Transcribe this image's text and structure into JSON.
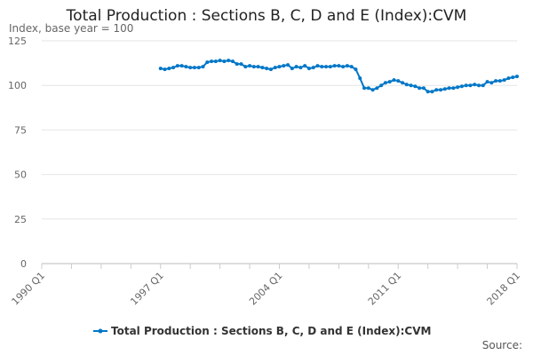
{
  "chart_data": {
    "type": "line",
    "title": "Total Production : Sections B, C, D and E (Index):CVM",
    "ylabel": "Index, base year = 100",
    "ylim": [
      0,
      125
    ],
    "yticks": [
      0,
      25,
      50,
      75,
      100,
      125
    ],
    "xlim": [
      "1990 Q1",
      "2018 Q1"
    ],
    "xtick_labels": [
      "1990 Q1",
      "1997 Q1",
      "2004 Q1",
      "2011 Q1",
      "2018 Q1"
    ],
    "grid": "horizontal",
    "legend_position": "bottom",
    "color": "#0077c8",
    "source_label": "Source:",
    "series": [
      {
        "name": "Total Production : Sections B, C, D and E (Index):CVM",
        "start": "1997 Q1",
        "values": [
          109.5,
          109,
          109.5,
          110,
          111,
          111,
          110.5,
          110,
          110,
          110,
          110.5,
          113,
          113.5,
          113.5,
          114,
          113.5,
          114,
          113.5,
          112,
          112,
          110.5,
          111,
          110.5,
          110.5,
          110,
          109.5,
          109,
          110,
          110.5,
          111,
          111.5,
          109.5,
          110.5,
          110,
          111,
          109.5,
          110,
          111,
          110.5,
          110.5,
          110.5,
          111,
          111,
          110.5,
          111,
          110.5,
          109,
          104,
          98.5,
          98.5,
          97.5,
          98.5,
          100,
          101.5,
          102,
          103,
          102.5,
          101.5,
          100.5,
          100,
          99.5,
          98.5,
          98.5,
          96.5,
          96.5,
          97.5,
          97.5,
          98,
          98.5,
          98.5,
          99,
          99.5,
          100,
          100,
          100.5,
          100,
          100,
          102,
          101.5,
          102.5,
          102.5,
          103,
          104,
          104.5,
          105
        ]
      }
    ]
  }
}
